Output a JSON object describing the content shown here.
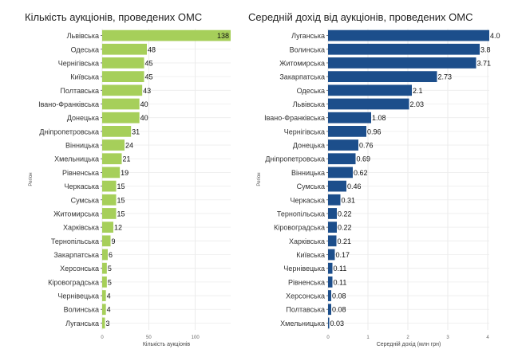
{
  "chart_data": [
    {
      "type": "bar",
      "orientation": "horizontal",
      "title": "Кількість аукціонів, проведених ОМС",
      "xlabel": "Кількість аукціонів",
      "ylabel": "Регіон",
      "xlim": [
        0,
        138
      ],
      "xticks": [
        0,
        50,
        100
      ],
      "grid": true,
      "color": "#a6cf5a",
      "categories": [
        "Львівська",
        "Одеська",
        "Чернігівська",
        "Київська",
        "Полтавська",
        "Івано-Франківська",
        "Донецька",
        "Дніпропетровська",
        "Вінницька",
        "Хмельницька",
        "Рівненська",
        "Черкаська",
        "Сумська",
        "Житомирська",
        "Харківська",
        "Тернопільська",
        "Закарпатська",
        "Херсонська",
        "Кіровоградська",
        "Чернівецька",
        "Волинська",
        "Луганська"
      ],
      "values": [
        138,
        48,
        45,
        45,
        43,
        40,
        40,
        31,
        24,
        21,
        19,
        15,
        15,
        15,
        12,
        9,
        6,
        5,
        5,
        4,
        4,
        3
      ],
      "labels": [
        "138",
        "48",
        "45",
        "45",
        "43",
        "40",
        "40",
        "31",
        "24",
        "21",
        "19",
        "15",
        "15",
        "15",
        "12",
        "9",
        "6",
        "5",
        "5",
        "4",
        "4",
        "3"
      ]
    },
    {
      "type": "bar",
      "orientation": "horizontal",
      "title": "Середній дохід від аукціонів, проведених ОМС",
      "xlabel": "Середній дохід (млн грн)",
      "ylabel": "Регіон",
      "xlim": [
        0,
        4.04
      ],
      "xticks": [
        0,
        1,
        2,
        3,
        4
      ],
      "grid": true,
      "color": "#1c4e8b",
      "categories": [
        "Луганська",
        "Волинська",
        "Житомирська",
        "Закарпатська",
        "Одеська",
        "Львівська",
        "Івано-Франківська",
        "Чернігівська",
        "Донецька",
        "Дніпропетровська",
        "Вінницька",
        "Сумська",
        "Черкаська",
        "Тернопільська",
        "Кіровоградська",
        "Харківська",
        "Київська",
        "Чернівецька",
        "Рівненська",
        "Херсонська",
        "Полтавська",
        "Хмельницька"
      ],
      "values": [
        4.04,
        3.8,
        3.71,
        2.73,
        2.1,
        2.03,
        1.08,
        0.96,
        0.76,
        0.69,
        0.62,
        0.46,
        0.31,
        0.22,
        0.22,
        0.21,
        0.17,
        0.11,
        0.11,
        0.08,
        0.08,
        0.03
      ],
      "labels": [
        "4.0",
        "3.8",
        "3.71",
        "2.73",
        "2.1",
        "2.03",
        "1.08",
        "0.96",
        "0.76",
        "0.69",
        "0.62",
        "0.46",
        "0.31",
        "0.22",
        "0.22",
        "0.21",
        "0.17",
        "0.11",
        "0.11",
        "0.08",
        "0.08",
        "0.03"
      ]
    }
  ]
}
